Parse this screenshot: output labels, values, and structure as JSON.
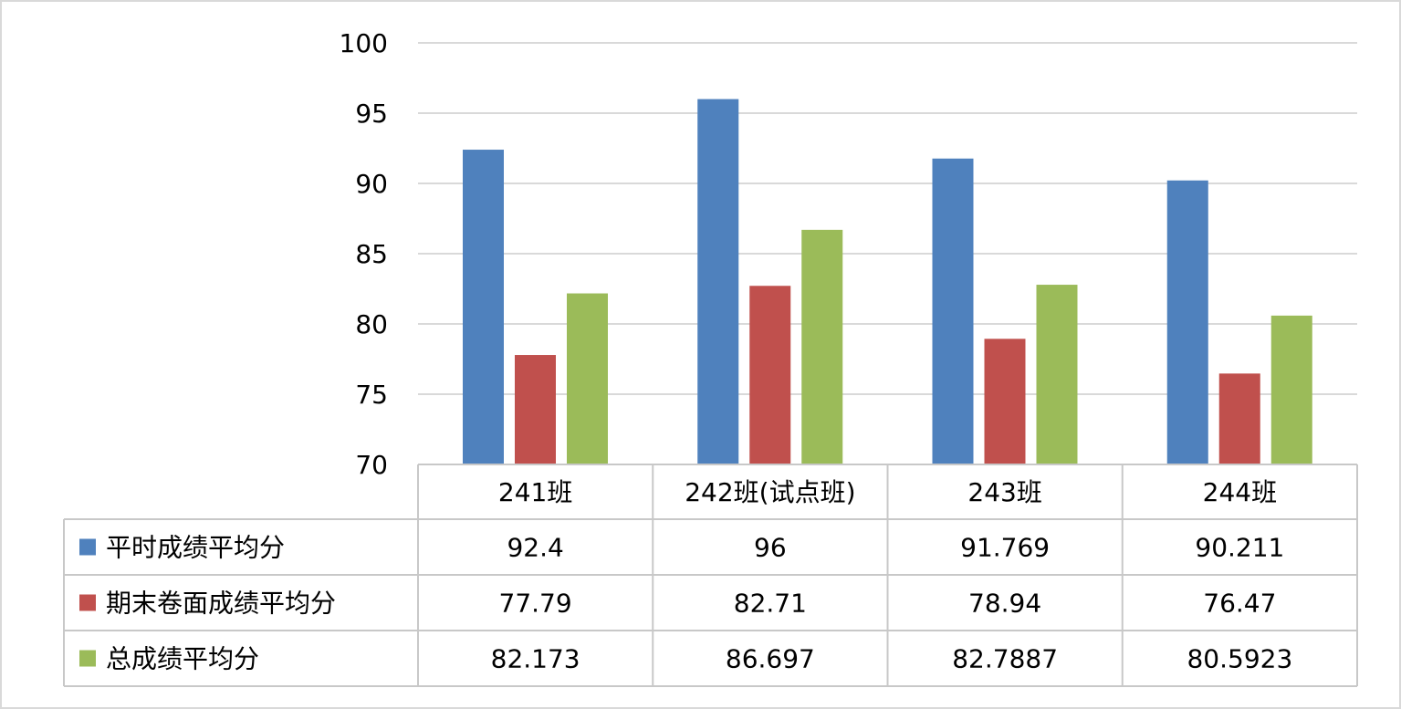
{
  "chart_data": {
    "type": "bar",
    "title": "",
    "xlabel": "",
    "ylabel": "",
    "ylim": [
      70,
      100
    ],
    "yticks": [
      70,
      75,
      80,
      85,
      90,
      95,
      100
    ],
    "grid": true,
    "legend": "data-table-left",
    "categories": [
      "241班",
      "242班(试点班)",
      "243班",
      "244班"
    ],
    "series": [
      {
        "name": "平时成绩平均分",
        "color": "#4f81bd",
        "values": [
          92.4,
          96,
          91.769,
          90.211
        ],
        "labels": [
          "92.4",
          "96",
          "91.769",
          "90.211"
        ]
      },
      {
        "name": "期末卷面成绩平均分",
        "color": "#c0504d",
        "values": [
          77.79,
          82.71,
          78.94,
          76.47
        ],
        "labels": [
          "77.79",
          "82.71",
          "78.94",
          "76.47"
        ]
      },
      {
        "name": "总成绩平均分",
        "color": "#9bbb59",
        "values": [
          82.173,
          86.697,
          82.7887,
          80.5923
        ],
        "labels": [
          "82.173",
          "86.697",
          "82.7887",
          "80.5923"
        ]
      }
    ]
  }
}
